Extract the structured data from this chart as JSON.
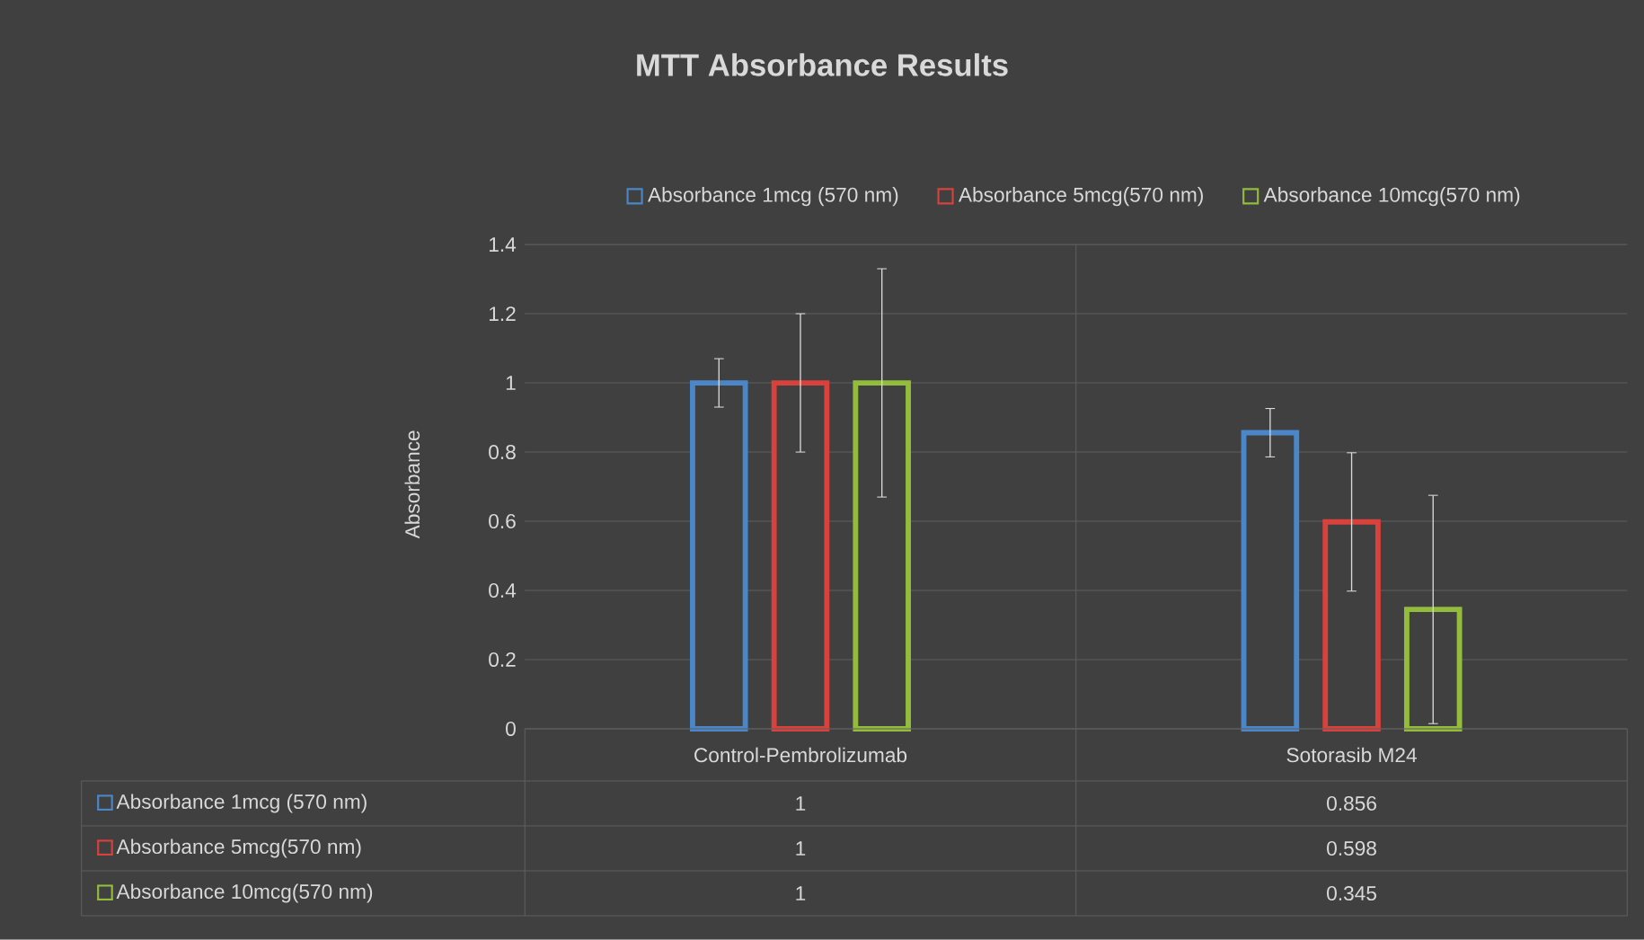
{
  "chart_data": {
    "type": "bar",
    "title": "MTT Absorbance Results",
    "ylabel": "Absorbance",
    "categories": [
      "Control-Pembrolizumab",
      "Sotorasib M24"
    ],
    "series": [
      {
        "name": "Absorbance 1mcg (570 nm)",
        "color": "#4a86c8",
        "values": [
          1,
          0.856
        ],
        "errors": [
          0.07,
          0.07
        ],
        "value_labels": [
          "1",
          "0.856"
        ]
      },
      {
        "name": "Absorbance 5mcg(570 nm)",
        "color": "#d8413c",
        "values": [
          1,
          0.598
        ],
        "errors": [
          0.2,
          0.2
        ],
        "value_labels": [
          "1",
          "0.598"
        ]
      },
      {
        "name": "Absorbance 10mcg(570 nm)",
        "color": "#94bc3c",
        "values": [
          1,
          0.345
        ],
        "errors": [
          0.33,
          0.33
        ],
        "value_labels": [
          "1",
          "0.345"
        ]
      }
    ],
    "ylim": [
      0,
      1.4
    ],
    "yticks": [
      0,
      0.2,
      0.4,
      0.6,
      0.8,
      1,
      1.2,
      1.4
    ],
    "grid": "y",
    "legend": "top"
  }
}
